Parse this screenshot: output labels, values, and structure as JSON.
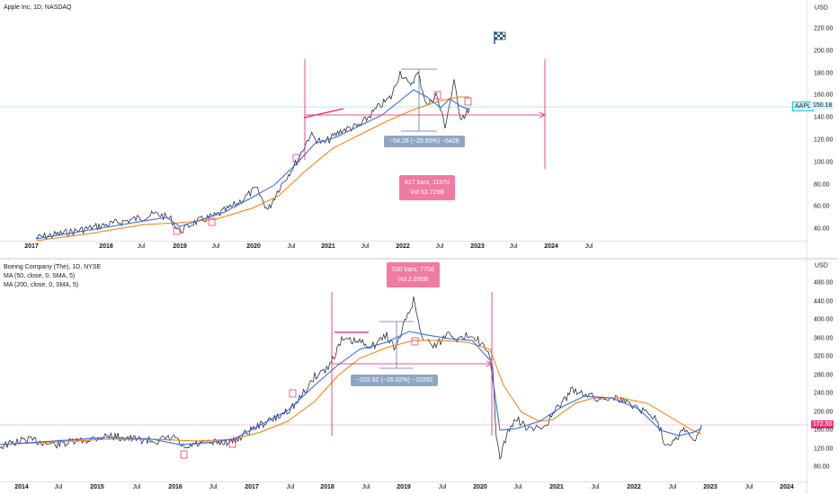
{
  "top": {
    "legend": "Apple Inc, 1D, NASDAQ",
    "currency": "USD",
    "yticks": [
      "220.00",
      "200.00",
      "180.00",
      "160.00",
      "140.00",
      "120.00",
      "100.00",
      "80.00",
      "60.00",
      "40.00"
    ],
    "xticks": [
      {
        "label": "2017",
        "major": true
      },
      {
        "label": "2018",
        "major": true
      },
      {
        "label": "Jul",
        "major": false
      },
      {
        "label": "2019",
        "major": true
      },
      {
        "label": "Jul",
        "major": false
      },
      {
        "label": "2020",
        "major": true
      },
      {
        "label": "Jul",
        "major": false
      },
      {
        "label": "2021",
        "major": true
      },
      {
        "label": "Jul",
        "major": false
      },
      {
        "label": "2022",
        "major": true
      },
      {
        "label": "Jul",
        "major": false
      },
      {
        "label": "2023",
        "major": true
      },
      {
        "label": "Jul",
        "major": false
      },
      {
        "label": "2024",
        "major": true
      },
      {
        "label": "Jul",
        "major": false
      }
    ],
    "ticker_label": "AAPL",
    "price_label": "150.18",
    "measure_label": "−54.28 (−29.60%) −5428",
    "range_line1": "817 bars, 1187d",
    "range_line2": "Vol 53.728B",
    "flag_icon": "checkered-flag-icon"
  },
  "bottom": {
    "legend_title": "Boeing Company (The), 1D, NYSE",
    "legend_ma1": "MA (50, close, 0, SMA, 5)",
    "legend_ma2": "MA (200, close, 0, SMA, 5)",
    "currency": "USD",
    "yticks": [
      "480.00",
      "440.00",
      "400.00",
      "360.00",
      "320.00",
      "280.00",
      "240.00",
      "200.00",
      "160.00",
      "120.00",
      "80.00"
    ],
    "xticks": [
      {
        "label": "2014",
        "major": true
      },
      {
        "label": "Jul",
        "major": false
      },
      {
        "label": "2015",
        "major": true
      },
      {
        "label": "Jul",
        "major": false
      },
      {
        "label": "2016",
        "major": true
      },
      {
        "label": "Jul",
        "major": false
      },
      {
        "label": "2017",
        "major": true
      },
      {
        "label": "Jul",
        "major": false
      },
      {
        "label": "2018",
        "major": true
      },
      {
        "label": "Jul",
        "major": false
      },
      {
        "label": "2019",
        "major": true
      },
      {
        "label": "Jul",
        "major": false
      },
      {
        "label": "2020",
        "major": true
      },
      {
        "label": "Jul",
        "major": false
      },
      {
        "label": "2021",
        "major": true
      },
      {
        "label": "Jul",
        "major": false
      },
      {
        "label": "2022",
        "major": true
      },
      {
        "label": "Jul",
        "major": false
      },
      {
        "label": "2023",
        "major": true
      },
      {
        "label": "Jul",
        "major": false
      },
      {
        "label": "2024",
        "major": true
      }
    ],
    "price_label": "172.50",
    "measure_label": "−102.92 (−26.02%) −10292",
    "range_line1": "530 bars, 770d",
    "range_line2": "Vol 2.695B"
  },
  "colors": {
    "price": "#131722",
    "ma50": "#2962ff",
    "ma200": "#f57c00",
    "drawing": "#e91e63",
    "crosshair": "#26c6da",
    "measure": "#5b7aa8"
  }
}
